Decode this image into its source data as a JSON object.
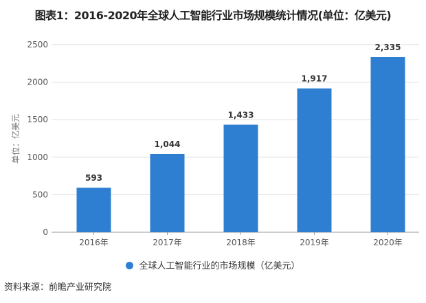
{
  "chart_data": {
    "type": "bar",
    "title": "图表1：2016-2020年全球人工智能行业市场规模统计情况(单位：亿美元)",
    "categories": [
      "2016年",
      "2017年",
      "2018年",
      "2019年",
      "2020年"
    ],
    "series": [
      {
        "name": "全球人工智能行业的市场规模（亿美元）",
        "values": [
          593,
          1044,
          1433,
          1917,
          2335
        ],
        "color": "#2e7fd1"
      }
    ],
    "data_labels": [
      "593",
      "1,044",
      "1,433",
      "1,917",
      "2,335"
    ],
    "xlabel": "",
    "ylabel": "单位：亿美元",
    "ylim": [
      0,
      2500
    ],
    "yticks": [
      "0",
      "500",
      "1000",
      "1500",
      "2000",
      "2500"
    ],
    "grid": true,
    "legend": "bottom"
  },
  "source": "资料来源：前瞻产业研究院"
}
